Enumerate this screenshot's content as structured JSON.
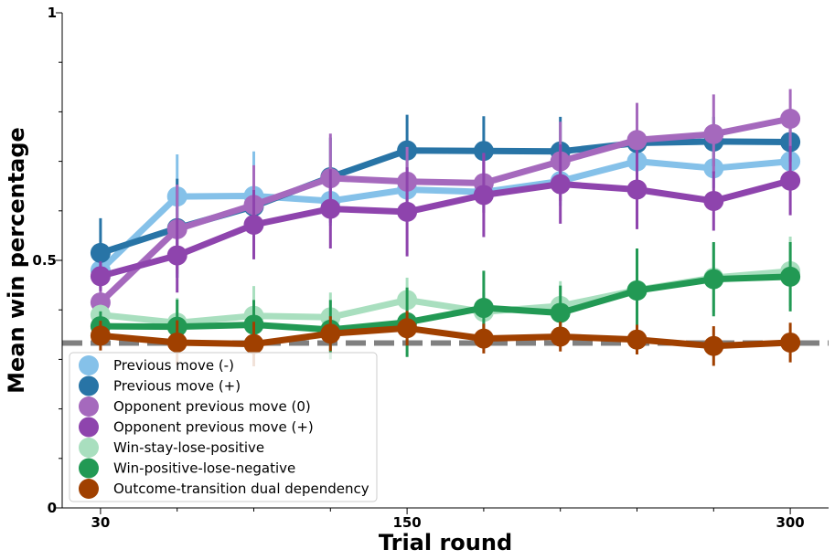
{
  "chart_data": {
    "type": "line",
    "xlabel": "Trial round",
    "ylabel": "Mean win percentage",
    "xlim": [
      15,
      315
    ],
    "ylim": [
      0,
      1
    ],
    "x_ticks": [
      30,
      150,
      300
    ],
    "x_minor_ticks": [
      60,
      90,
      120,
      180,
      210,
      240,
      270
    ],
    "y_ticks": [
      0,
      0.5,
      1
    ],
    "y_minor_ticks": [
      0.1,
      0.2,
      0.3,
      0.4,
      0.6,
      0.7,
      0.8,
      0.9
    ],
    "chance_level": 0.333,
    "chance_color": "#808080",
    "legend_position": "lower-left",
    "x": [
      30,
      60,
      90,
      120,
      150,
      180,
      210,
      240,
      270,
      300
    ],
    "series": [
      {
        "name": "Previous move (-)",
        "color": "#85C1E9",
        "values": [
          0.48,
          0.629,
          0.63,
          0.62,
          0.643,
          0.638,
          0.66,
          0.7,
          0.686,
          0.7
        ],
        "errors": [
          0.04,
          0.085,
          0.09,
          0.05,
          0.04,
          0.04,
          0.05,
          0.04,
          0.04,
          0.03
        ]
      },
      {
        "name": "Previous move (+)",
        "color": "#2874A6",
        "values": [
          0.515,
          0.565,
          0.609,
          0.668,
          0.722,
          0.721,
          0.72,
          0.737,
          0.74,
          0.739
        ],
        "errors": [
          0.07,
          0.1,
          0.08,
          0.08,
          0.072,
          0.07,
          0.07,
          0.06,
          0.05,
          0.04
        ]
      },
      {
        "name": "Opponent previous move (0)",
        "color": "#A569BD",
        "values": [
          0.415,
          0.563,
          0.612,
          0.666,
          0.659,
          0.656,
          0.7,
          0.743,
          0.755,
          0.786
        ],
        "errors": [
          0.04,
          0.09,
          0.08,
          0.09,
          0.07,
          0.06,
          0.08,
          0.075,
          0.08,
          0.06
        ]
      },
      {
        "name": "Opponent previous move (+)",
        "color": "#8E44AD",
        "values": [
          0.468,
          0.51,
          0.572,
          0.604,
          0.598,
          0.632,
          0.654,
          0.643,
          0.62,
          0.661
        ],
        "errors": [
          0.03,
          0.075,
          0.07,
          0.08,
          0.09,
          0.085,
          0.08,
          0.08,
          0.06,
          0.07
        ]
      },
      {
        "name": "Win-stay-lose-positive",
        "color": "#A9DFBF",
        "values": [
          0.39,
          0.374,
          0.388,
          0.385,
          0.42,
          0.396,
          0.408,
          0.44,
          0.465,
          0.478
        ],
        "errors": [
          0.02,
          0.05,
          0.06,
          0.05,
          0.045,
          0.04,
          0.05,
          0.07,
          0.07,
          0.07
        ]
      },
      {
        "name": "Win-positive-lose-negative",
        "color": "#229954",
        "values": [
          0.367,
          0.366,
          0.37,
          0.36,
          0.375,
          0.404,
          0.394,
          0.439,
          0.462,
          0.467
        ],
        "errors": [
          0.03,
          0.055,
          0.05,
          0.06,
          0.07,
          0.075,
          0.055,
          0.085,
          0.075,
          0.07
        ]
      },
      {
        "name": "Outcome-transition dual dependency",
        "color": "#A04000",
        "values": [
          0.348,
          0.334,
          0.331,
          0.352,
          0.363,
          0.342,
          0.346,
          0.34,
          0.327,
          0.334
        ],
        "errors": [
          0.03,
          0.045,
          0.045,
          0.035,
          0.035,
          0.03,
          0.03,
          0.03,
          0.04,
          0.04
        ]
      }
    ]
  }
}
